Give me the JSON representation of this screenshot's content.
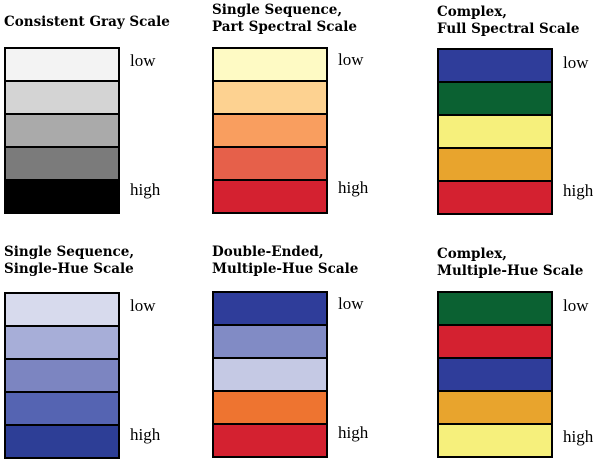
{
  "panels": [
    {
      "title": "Consistent Gray Scale",
      "low_label": "low",
      "high_label": "high",
      "colors": [
        "#f3f3f3",
        "#d4d4d4",
        "#aaaaaa",
        "#7b7b7b",
        "#000000"
      ]
    },
    {
      "title": "Single Sequence,\nPart Spectral Scale",
      "low_label": "low",
      "high_label": "high",
      "colors": [
        "#fefac4",
        "#fdd291",
        "#f99e5f",
        "#e6604a",
        "#d42130"
      ]
    },
    {
      "title": "Complex,\nFull Spectral Scale",
      "low_label": "low",
      "high_label": "high",
      "colors": [
        "#2f3d9a",
        "#0b6132",
        "#f6f07c",
        "#e8a42d",
        "#d42130"
      ]
    },
    {
      "title": "Single Sequence,\nSingle-Hue Scale",
      "low_label": "low",
      "high_label": "high",
      "colors": [
        "#d7daed",
        "#a7aed8",
        "#7c85c1",
        "#5564b2",
        "#2d3e96"
      ]
    },
    {
      "title": "Double-Ended,\nMultiple-Hue Scale",
      "low_label": "low",
      "high_label": "high",
      "colors": [
        "#2f3d9a",
        "#818bc5",
        "#c5c9e4",
        "#ee7430",
        "#d42130"
      ]
    },
    {
      "title": "Complex,\nMultiple-Hue Scale",
      "low_label": "low",
      "high_label": "high",
      "colors": [
        "#0b6132",
        "#d42130",
        "#2f3d9a",
        "#e8a42d",
        "#f6f07c"
      ]
    }
  ]
}
